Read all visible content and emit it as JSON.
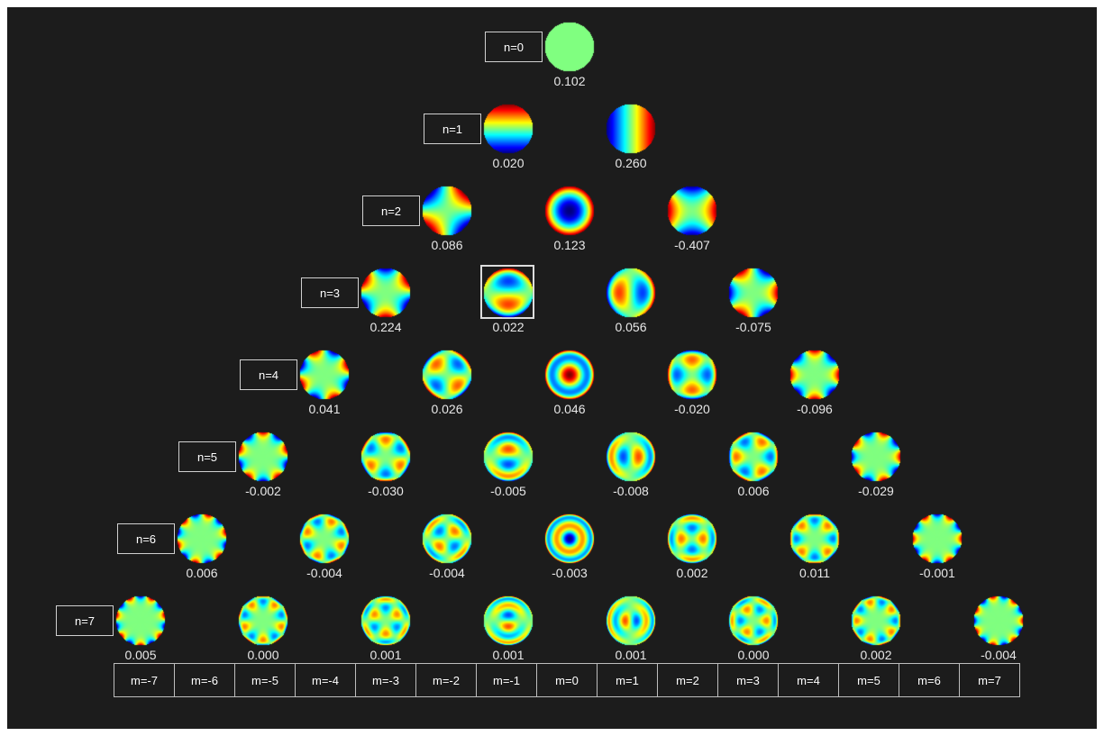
{
  "rows": [
    {
      "label": "n=0",
      "terms": [
        {
          "m": 0,
          "value": "0.102"
        }
      ]
    },
    {
      "label": "n=1",
      "terms": [
        {
          "m": -1,
          "value": "0.020"
        },
        {
          "m": 1,
          "value": "0.260"
        }
      ]
    },
    {
      "label": "n=2",
      "terms": [
        {
          "m": -2,
          "value": "0.086"
        },
        {
          "m": 0,
          "value": "0.123"
        },
        {
          "m": 2,
          "value": "-0.407"
        }
      ]
    },
    {
      "label": "n=3",
      "terms": [
        {
          "m": -3,
          "value": "0.224"
        },
        {
          "m": -1,
          "value": "0.022",
          "selected": true
        },
        {
          "m": 1,
          "value": "0.056"
        },
        {
          "m": 3,
          "value": "-0.075"
        }
      ]
    },
    {
      "label": "n=4",
      "terms": [
        {
          "m": -4,
          "value": "0.041"
        },
        {
          "m": -2,
          "value": "0.026"
        },
        {
          "m": 0,
          "value": "0.046"
        },
        {
          "m": 2,
          "value": "-0.020"
        },
        {
          "m": 4,
          "value": "-0.096"
        }
      ]
    },
    {
      "label": "n=5",
      "terms": [
        {
          "m": -5,
          "value": "-0.002"
        },
        {
          "m": -3,
          "value": "-0.030"
        },
        {
          "m": -1,
          "value": "-0.005"
        },
        {
          "m": 1,
          "value": "-0.008"
        },
        {
          "m": 3,
          "value": "0.006"
        },
        {
          "m": 5,
          "value": "-0.029"
        }
      ]
    },
    {
      "label": "n=6",
      "terms": [
        {
          "m": -6,
          "value": "0.006"
        },
        {
          "m": -4,
          "value": "-0.004"
        },
        {
          "m": -2,
          "value": "-0.004"
        },
        {
          "m": 0,
          "value": "-0.003"
        },
        {
          "m": 2,
          "value": "0.002"
        },
        {
          "m": 4,
          "value": "0.011"
        },
        {
          "m": 6,
          "value": "-0.001"
        }
      ]
    },
    {
      "label": "n=7",
      "terms": [
        {
          "m": -7,
          "value": "0.005"
        },
        {
          "m": -5,
          "value": "0.000"
        },
        {
          "m": -3,
          "value": "0.001"
        },
        {
          "m": -1,
          "value": "0.001"
        },
        {
          "m": 1,
          "value": "0.001"
        },
        {
          "m": 3,
          "value": "0.000"
        },
        {
          "m": 5,
          "value": "0.002"
        },
        {
          "m": 7,
          "value": "-0.004"
        }
      ]
    }
  ],
  "m_axis": [
    "m=-7",
    "m=-6",
    "m=-5",
    "m=-4",
    "m=-3",
    "m=-2",
    "m=-1",
    "m=0",
    "m=1",
    "m=2",
    "m=3",
    "m=4",
    "m=5",
    "m=6",
    "m=7"
  ],
  "colors": {
    "background": "#1c1c1c",
    "page": "#ffffff",
    "label_border": "#d0d0d0",
    "text": "#e8e8e8",
    "selection": "#dddddd",
    "colormap": "jet"
  }
}
